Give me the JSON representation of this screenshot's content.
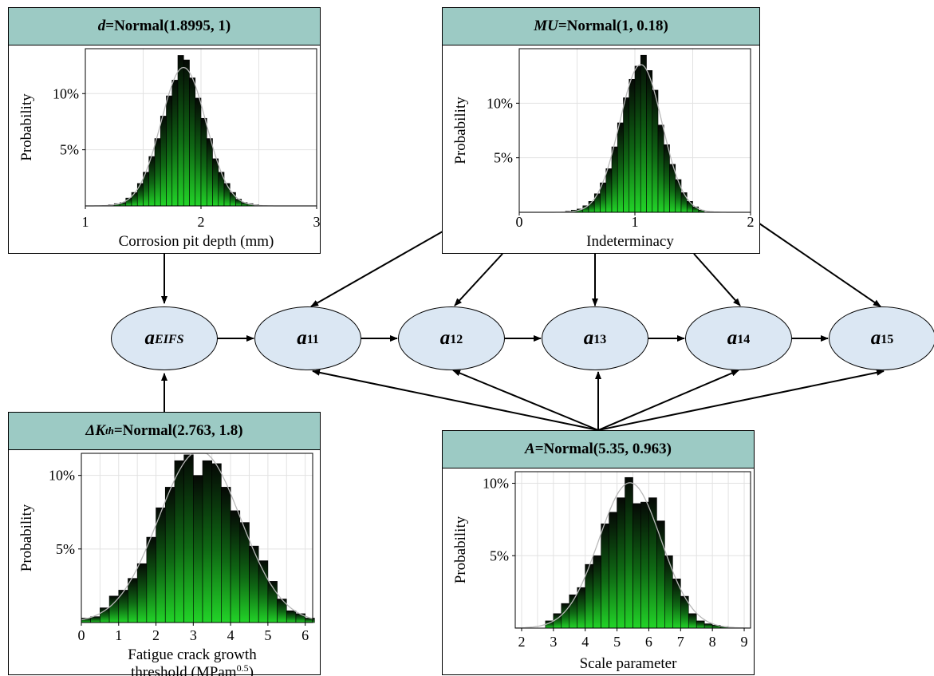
{
  "nodes": [
    {
      "id": "aEIFS",
      "base": "a",
      "sub": "EIFS",
      "sub_italic": true
    },
    {
      "id": "a11",
      "base": "a",
      "sub": "11",
      "sub_italic": false
    },
    {
      "id": "a12",
      "base": "a",
      "sub": "12",
      "sub_italic": false
    },
    {
      "id": "a13",
      "base": "a",
      "sub": "13",
      "sub_italic": false
    },
    {
      "id": "a14",
      "base": "a",
      "sub": "14",
      "sub_italic": false
    },
    {
      "id": "a15",
      "base": "a",
      "sub": "15",
      "sub_italic": false
    }
  ],
  "panels": {
    "d": {
      "title_var": "d",
      "title_rest": "=Normal(1.8995, 1)",
      "chart_data": {
        "type": "bar",
        "xlabel": "Corrosion pit depth (mm)",
        "ylabel": "Probability",
        "xlim": [
          1,
          3
        ],
        "ylim": [
          0,
          14
        ],
        "xticks": [
          "1",
          "2",
          "3"
        ],
        "yticks": [
          "5%",
          "10%"
        ],
        "bin_width": 0.05,
        "bin_start": 1.2,
        "values": [
          0.1,
          0.2,
          0.3,
          0.7,
          1.2,
          2.0,
          3.0,
          4.4,
          6.0,
          8.0,
          9.8,
          11.2,
          13.4,
          13.0,
          11.4,
          9.6,
          7.8,
          6.0,
          4.2,
          3.0,
          2.0,
          1.2,
          0.6,
          0.3,
          0.2,
          0.1
        ]
      }
    },
    "mu": {
      "title_var": "MU",
      "title_rest": "=Normal(1, 0.18)",
      "chart_data": {
        "type": "bar",
        "xlabel": "Indeterminacy",
        "ylabel": "Probability",
        "xlim": [
          0,
          2
        ],
        "ylim": [
          0,
          15
        ],
        "xticks": [
          "0",
          "1",
          "2"
        ],
        "yticks": [
          "5%",
          "10%"
        ],
        "bin_width": 0.05,
        "bin_start": 0.4,
        "values": [
          0.1,
          0.2,
          0.3,
          0.6,
          1.0,
          1.7,
          2.7,
          4.0,
          6.0,
          8.2,
          10.5,
          12.2,
          13.4,
          14.4,
          13.0,
          11.2,
          8.0,
          6.2,
          4.4,
          3.0,
          1.8,
          1.0,
          0.5,
          0.2
        ]
      }
    },
    "dk": {
      "title_var": "ΔK",
      "title_sub": "th",
      "title_rest": "=Normal(2.763, 1.8)",
      "chart_data": {
        "type": "bar",
        "xlabel": "Fatigue crack growth",
        "xlabel2": "threshold (MPam",
        "xlabel_sup": "0.5",
        "xlabel_end": ")",
        "ylabel": "Probability",
        "xlim": [
          0,
          6.2
        ],
        "ylim": [
          0,
          11.5
        ],
        "xticks": [
          "0",
          "1",
          "2",
          "3",
          "4",
          "5",
          "6"
        ],
        "yticks": [
          "5%",
          "10%"
        ],
        "bin_width": 0.25,
        "bin_start": 0.0,
        "values": [
          0.3,
          0.4,
          1.0,
          1.8,
          2.2,
          3.0,
          4.0,
          5.8,
          7.8,
          9.2,
          11.0,
          11.4,
          10.0,
          11.0,
          10.8,
          9.2,
          7.6,
          6.8,
          5.2,
          4.2,
          2.8,
          1.6,
          0.8,
          0.6,
          0.3
        ]
      }
    },
    "a": {
      "title_var": "A",
      "title_rest": "=Normal(5.35, 0.963)",
      "chart_data": {
        "type": "bar",
        "xlabel": "Scale parameter",
        "ylabel": "Probability",
        "xlim": [
          1.8,
          9.2
        ],
        "ylim": [
          0,
          10.8
        ],
        "xticks": [
          "2",
          "3",
          "4",
          "5",
          "6",
          "7",
          "8",
          "9"
        ],
        "yticks": [
          "5%",
          "10%"
        ],
        "bin_width": 0.25,
        "bin_start": 2.75,
        "values": [
          0.5,
          1.0,
          1.7,
          2.3,
          2.8,
          4.4,
          5.0,
          7.2,
          8.0,
          9.0,
          10.4,
          8.6,
          8.7,
          9.0,
          7.4,
          5.0,
          3.4,
          2.2,
          1.0,
          0.5,
          0.3,
          0.2,
          0.1
        ]
      }
    }
  }
}
